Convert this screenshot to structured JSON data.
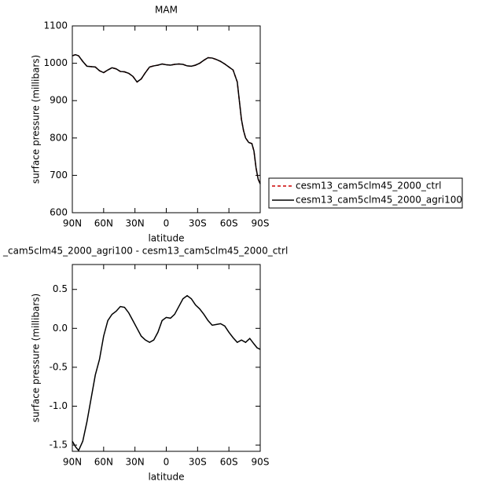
{
  "chart_data": [
    {
      "type": "line",
      "title": "MAM",
      "xlabel": "latitude",
      "ylabel": "surface pressure (millibars)",
      "x": [
        90,
        87,
        84,
        80,
        76,
        72,
        68,
        64,
        60,
        56,
        52,
        48,
        44,
        40,
        36,
        32,
        28,
        24,
        20,
        16,
        12,
        8,
        4,
        0,
        -4,
        -8,
        -12,
        -16,
        -20,
        -24,
        -28,
        -32,
        -36,
        -40,
        -44,
        -48,
        -52,
        -56,
        -60,
        -64,
        -68,
        -70,
        -72,
        -74,
        -76,
        -79,
        -82,
        -84,
        -86,
        -88,
        -90
      ],
      "series": [
        {
          "name": "cesm13_cam5clm45_2000_ctrl",
          "color": "#cc0000",
          "linestyle": "dashed",
          "values": [
            1020,
            1023,
            1020,
            1005,
            992,
            991,
            990,
            980,
            975,
            982,
            988,
            985,
            978,
            977,
            973,
            965,
            950,
            958,
            975,
            990,
            993,
            995,
            998,
            996,
            995,
            997,
            998,
            997,
            993,
            992,
            995,
            1000,
            1008,
            1015,
            1014,
            1010,
            1005,
            998,
            990,
            982,
            950,
            900,
            850,
            820,
            800,
            788,
            785,
            765,
            720,
            690,
            677
          ]
        },
        {
          "name": "cesm13_cam5clm45_2000_agri100",
          "color": "#000000",
          "linestyle": "solid",
          "values": [
            1020,
            1023,
            1020,
            1005,
            992,
            991,
            990,
            980,
            975,
            982,
            988,
            985,
            978,
            977,
            973,
            965,
            950,
            958,
            975,
            990,
            993,
            995,
            998,
            996,
            995,
            997,
            998,
            997,
            993,
            992,
            995,
            1000,
            1008,
            1015,
            1014,
            1010,
            1005,
            998,
            990,
            982,
            950,
            900,
            850,
            820,
            800,
            788,
            785,
            765,
            720,
            690,
            677
          ]
        }
      ],
      "xlim": [
        90,
        -90
      ],
      "xticks": [
        {
          "value": 90,
          "label": "90N"
        },
        {
          "value": 60,
          "label": "60N"
        },
        {
          "value": 30,
          "label": "30N"
        },
        0,
        {
          "value": -30,
          "label": "30S"
        },
        {
          "value": -60,
          "label": "60S"
        },
        {
          "value": -90,
          "label": "90S"
        }
      ],
      "ylim": [
        600,
        1100
      ],
      "yticks": [
        600,
        700,
        800,
        900,
        1000,
        1100
      ],
      "legend": "right"
    },
    {
      "type": "line",
      "title": "_cam5clm45_2000_agri100 - cesm13_cam5clm45_2000_ctrl",
      "xlabel": "latitude",
      "ylabel": "surface pressure (millibars)",
      "x": [
        90,
        87,
        84,
        80,
        76,
        72,
        68,
        64,
        60,
        56,
        52,
        48,
        44,
        40,
        36,
        32,
        28,
        24,
        20,
        16,
        12,
        8,
        4,
        0,
        -4,
        -8,
        -12,
        -16,
        -20,
        -24,
        -28,
        -32,
        -36,
        -40,
        -44,
        -48,
        -52,
        -56,
        -60,
        -64,
        -68,
        -72,
        -76,
        -80,
        -84,
        -87,
        -90
      ],
      "series": [
        {
          "color": "#000000",
          "linestyle": "solid",
          "values": [
            -1.45,
            -1.52,
            -1.57,
            -1.45,
            -1.2,
            -0.9,
            -0.6,
            -0.4,
            -0.1,
            0.1,
            0.18,
            0.22,
            0.28,
            0.27,
            0.2,
            0.1,
            0.0,
            -0.1,
            -0.15,
            -0.18,
            -0.15,
            -0.05,
            0.1,
            0.14,
            0.13,
            0.18,
            0.28,
            0.38,
            0.42,
            0.38,
            0.3,
            0.25,
            0.18,
            0.1,
            0.04,
            0.05,
            0.06,
            0.03,
            -0.05,
            -0.12,
            -0.18,
            -0.15,
            -0.18,
            -0.13,
            -0.2,
            -0.25,
            -0.27
          ]
        }
      ],
      "xlim": [
        90,
        -90
      ],
      "xticks": [
        {
          "value": 90,
          "label": "90N"
        },
        {
          "value": 60,
          "label": "60N"
        },
        {
          "value": 30,
          "label": "30N"
        },
        0,
        {
          "value": -30,
          "label": "30S"
        },
        {
          "value": -60,
          "label": "60S"
        },
        {
          "value": -90,
          "label": "90S"
        }
      ],
      "ylim": [
        -1.58,
        0.82
      ],
      "yticks": [
        0.5,
        {
          "value": 0,
          "label": "0.0"
        },
        -0.5,
        {
          "value": -1,
          "label": "-1.0"
        },
        -1.5
      ]
    }
  ]
}
